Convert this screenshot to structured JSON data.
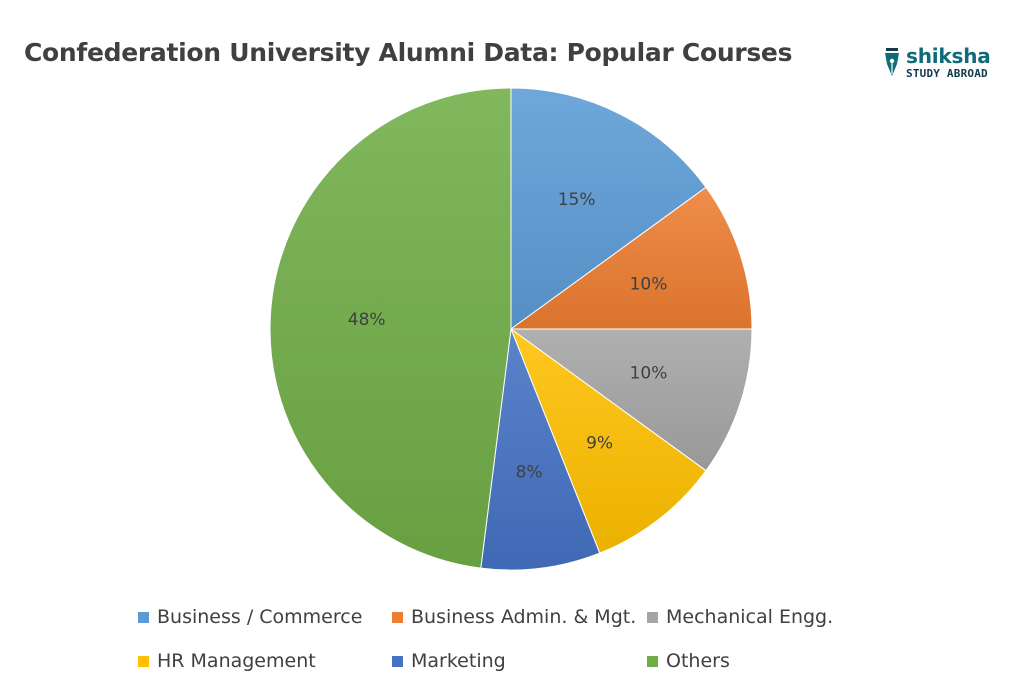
{
  "chart_data": {
    "type": "pie",
    "title": "Confederation University Alumni Data: Popular Courses",
    "slices": [
      {
        "label": "Business / Commerce",
        "value": 15,
        "data_label": "15%",
        "color": "#5b9bd5"
      },
      {
        "label": "Business Admin. & Mgt.",
        "value": 10,
        "data_label": "10%",
        "color": "#ed7d31"
      },
      {
        "label": "Mechanical Engg.",
        "value": 10,
        "data_label": "10%",
        "color": "#a5a5a5"
      },
      {
        "label": "HR Management",
        "value": 9,
        "data_label": "9%",
        "color": "#ffc000"
      },
      {
        "label": "Marketing",
        "value": 8,
        "data_label": "8%",
        "color": "#4472c4"
      },
      {
        "label": "Others",
        "value": 48,
        "data_label": "48%",
        "color": "#70ad47"
      }
    ],
    "legend_position": "bottom"
  },
  "brand": {
    "name": "shiksha",
    "tagline": "STUDY ABROAD",
    "icon": "pen-nib-icon",
    "color": "#0f6b7a"
  }
}
